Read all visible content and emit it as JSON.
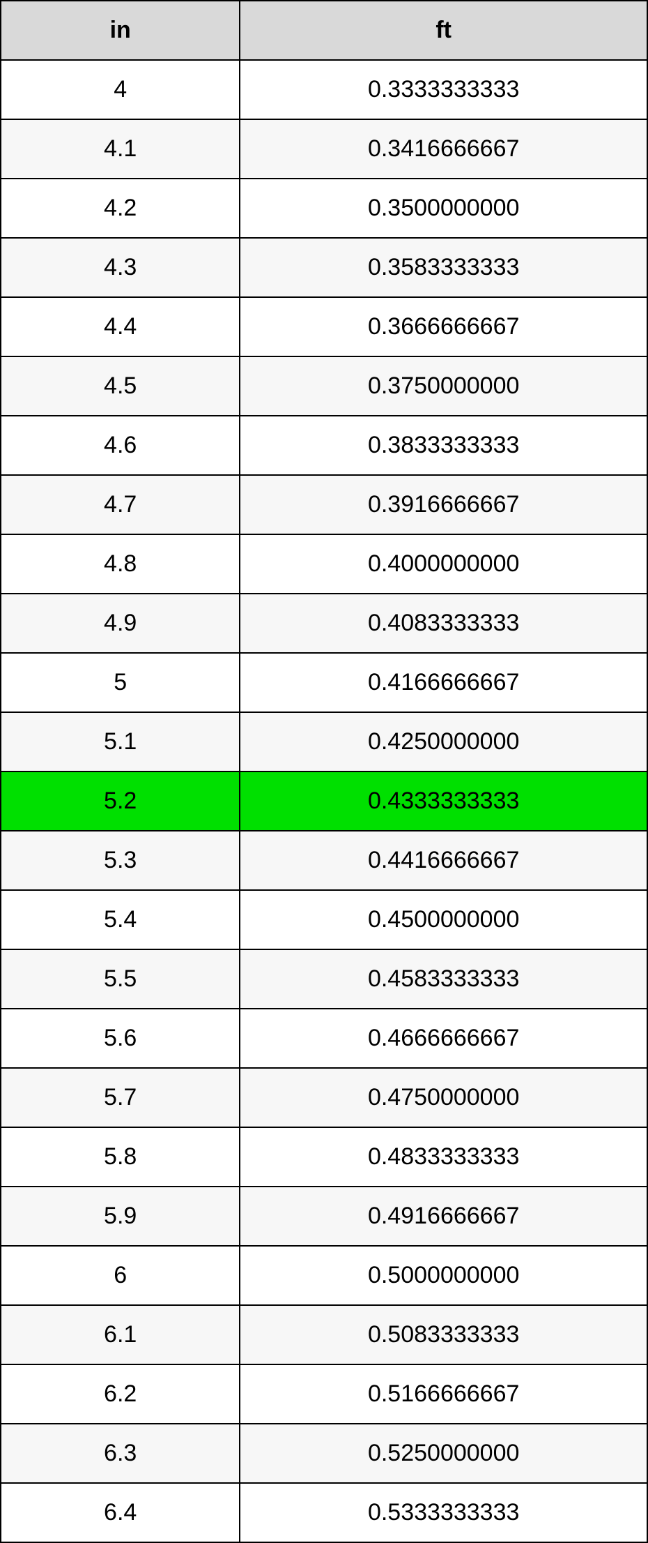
{
  "table": {
    "header_bg": "#d9d9d9",
    "row_bg_even": "#ffffff",
    "row_bg_odd": "#f7f7f7",
    "highlight_bg": "#00e000",
    "border_color": "#000000",
    "font_size": 34,
    "header_font_size": 34,
    "col1_width_pct": 37,
    "col2_width_pct": 63,
    "columns": [
      "in",
      "ft"
    ],
    "highlight_index": 12,
    "rows": [
      [
        "4",
        "0.3333333333"
      ],
      [
        "4.1",
        "0.3416666667"
      ],
      [
        "4.2",
        "0.3500000000"
      ],
      [
        "4.3",
        "0.3583333333"
      ],
      [
        "4.4",
        "0.3666666667"
      ],
      [
        "4.5",
        "0.3750000000"
      ],
      [
        "4.6",
        "0.3833333333"
      ],
      [
        "4.7",
        "0.3916666667"
      ],
      [
        "4.8",
        "0.4000000000"
      ],
      [
        "4.9",
        "0.4083333333"
      ],
      [
        "5",
        "0.4166666667"
      ],
      [
        "5.1",
        "0.4250000000"
      ],
      [
        "5.2",
        "0.4333333333"
      ],
      [
        "5.3",
        "0.4416666667"
      ],
      [
        "5.4",
        "0.4500000000"
      ],
      [
        "5.5",
        "0.4583333333"
      ],
      [
        "5.6",
        "0.4666666667"
      ],
      [
        "5.7",
        "0.4750000000"
      ],
      [
        "5.8",
        "0.4833333333"
      ],
      [
        "5.9",
        "0.4916666667"
      ],
      [
        "6",
        "0.5000000000"
      ],
      [
        "6.1",
        "0.5083333333"
      ],
      [
        "6.2",
        "0.5166666667"
      ],
      [
        "6.3",
        "0.5250000000"
      ],
      [
        "6.4",
        "0.5333333333"
      ]
    ]
  }
}
